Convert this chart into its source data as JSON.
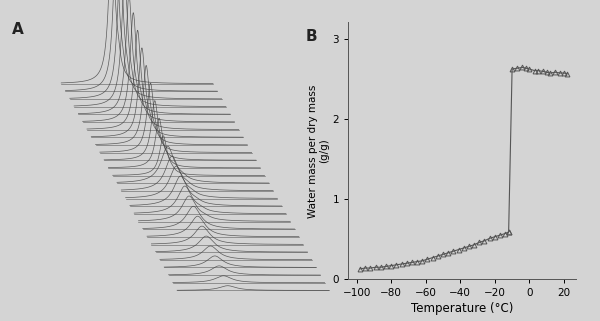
{
  "panel_A_label": "A",
  "panel_B_label": "B",
  "background_color": "#d4d4d4",
  "line_color": "#444444",
  "n_spectra": 28,
  "panel_B": {
    "temps_low": [
      -98,
      -95,
      -92,
      -89,
      -86,
      -83,
      -80,
      -77,
      -74,
      -71,
      -68,
      -65,
      -62,
      -59,
      -56,
      -53,
      -50,
      -47,
      -44,
      -41,
      -38,
      -35,
      -32,
      -29,
      -26,
      -23,
      -20,
      -17,
      -14,
      -12
    ],
    "vals_low": [
      0.13,
      0.14,
      0.14,
      0.15,
      0.15,
      0.16,
      0.17,
      0.18,
      0.19,
      0.2,
      0.21,
      0.22,
      0.23,
      0.25,
      0.27,
      0.29,
      0.31,
      0.33,
      0.35,
      0.37,
      0.39,
      0.41,
      0.43,
      0.46,
      0.48,
      0.51,
      0.53,
      0.55,
      0.57,
      0.59
    ],
    "temps_jump": [
      -12,
      -10
    ],
    "vals_jump": [
      0.59,
      2.62
    ],
    "temps_high": [
      -10,
      -7,
      -4,
      -2,
      0,
      3,
      5,
      8,
      10,
      12,
      15,
      18,
      20,
      22
    ],
    "vals_high": [
      2.62,
      2.63,
      2.64,
      2.63,
      2.62,
      2.6,
      2.6,
      2.59,
      2.58,
      2.57,
      2.58,
      2.57,
      2.57,
      2.56
    ],
    "xlim": [
      -105,
      27
    ],
    "ylim": [
      0,
      3.2
    ],
    "xticks": [
      -100,
      -80,
      -60,
      -40,
      -20,
      0,
      20
    ],
    "yticks": [
      0,
      1,
      2,
      3
    ],
    "xlabel": "Temperature (°C)",
    "ylabel": "Water mass per dry mass\n(g/g)",
    "marker": "^",
    "marker_size": 3.5,
    "line_color": "#555555",
    "marker_color": "none",
    "marker_edge_color": "#555555"
  }
}
